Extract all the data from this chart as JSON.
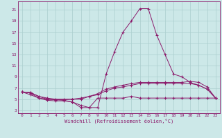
{
  "xlabel": "Windchill (Refroidissement éolien,°C)",
  "background_color": "#cce8e8",
  "line_color": "#8b1a6b",
  "grid_color": "#aacece",
  "x_ticks": [
    0,
    1,
    2,
    3,
    4,
    5,
    6,
    7,
    8,
    9,
    10,
    11,
    12,
    13,
    14,
    15,
    16,
    17,
    18,
    19,
    20,
    21,
    22,
    23
  ],
  "y_ticks": [
    3,
    5,
    7,
    9,
    11,
    13,
    15,
    17,
    19,
    21
  ],
  "xlim": [
    -0.5,
    23.5
  ],
  "ylim": [
    2.5,
    22.5
  ],
  "series": [
    {
      "x": [
        0,
        1,
        2,
        3,
        4,
        5,
        6,
        7,
        8,
        9,
        10,
        11,
        12,
        13,
        14,
        15,
        16,
        17,
        18,
        19,
        20,
        21,
        22,
        23
      ],
      "y": [
        6.3,
        6.1,
        5.2,
        5.0,
        4.9,
        4.8,
        4.5,
        3.9,
        3.5,
        3.5,
        9.5,
        13.5,
        17.0,
        19.0,
        21.2,
        21.2,
        16.5,
        13.0,
        9.5,
        9.0,
        8.0,
        7.5,
        6.8,
        5.2
      ]
    },
    {
      "x": [
        0,
        1,
        2,
        3,
        4,
        5,
        6,
        7,
        8,
        9,
        10,
        11,
        12,
        13,
        14,
        15,
        16,
        17,
        18,
        19,
        20,
        21,
        22,
        23
      ],
      "y": [
        6.3,
        5.8,
        5.2,
        4.8,
        4.7,
        4.7,
        4.5,
        3.5,
        3.5,
        5.2,
        5.2,
        5.2,
        5.2,
        5.5,
        5.2,
        5.2,
        5.2,
        5.2,
        5.2,
        5.2,
        5.2,
        5.2,
        5.2,
        5.2
      ]
    },
    {
      "x": [
        0,
        1,
        2,
        3,
        4,
        5,
        6,
        7,
        8,
        9,
        10,
        11,
        12,
        13,
        14,
        15,
        16,
        17,
        18,
        19,
        20,
        21,
        22,
        23
      ],
      "y": [
        6.3,
        6.2,
        5.5,
        5.0,
        4.9,
        4.9,
        5.0,
        5.2,
        5.5,
        6.0,
        6.8,
        7.2,
        7.5,
        7.8,
        8.0,
        8.0,
        8.0,
        8.0,
        8.0,
        8.0,
        8.2,
        8.0,
        7.2,
        5.2
      ]
    },
    {
      "x": [
        0,
        1,
        2,
        3,
        4,
        5,
        6,
        7,
        8,
        9,
        10,
        11,
        12,
        13,
        14,
        15,
        16,
        17,
        18,
        19,
        20,
        21,
        22,
        23
      ],
      "y": [
        6.3,
        6.2,
        5.5,
        5.2,
        5.0,
        5.0,
        5.0,
        5.0,
        5.5,
        5.8,
        6.5,
        7.0,
        7.2,
        7.5,
        7.8,
        7.8,
        7.8,
        7.8,
        7.8,
        7.8,
        7.8,
        7.5,
        6.8,
        5.2
      ]
    }
  ]
}
